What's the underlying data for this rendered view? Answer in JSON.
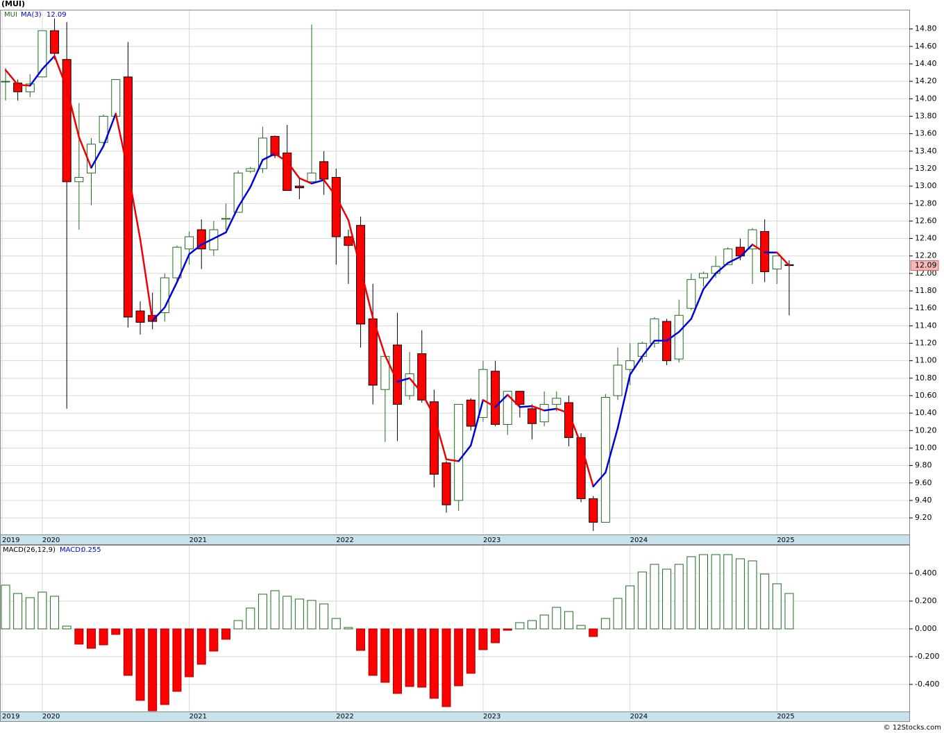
{
  "chart_data": [
    {
      "type": "candlestick",
      "title": "(MUI)",
      "ticker": "MUI",
      "categories": [
        "2019",
        null,
        null,
        "2020",
        null,
        null,
        null,
        null,
        null,
        null,
        null,
        null,
        null,
        null,
        null,
        "2021",
        null,
        null,
        null,
        null,
        null,
        null,
        null,
        null,
        null,
        null,
        null,
        "2022",
        null,
        null,
        null,
        null,
        null,
        null,
        null,
        null,
        null,
        null,
        null,
        "2023",
        null,
        null,
        null,
        null,
        null,
        null,
        null,
        null,
        null,
        null,
        null,
        "2024",
        null,
        null,
        null,
        null,
        null,
        null,
        null,
        null,
        null,
        null,
        null,
        "2025",
        null
      ],
      "open": [
        14.2,
        14.18,
        14.08,
        14.25,
        14.78,
        14.45,
        13.05,
        13.15,
        13.5,
        13.8,
        14.25,
        11.57,
        11.52,
        11.55,
        11.95,
        12.28,
        12.5,
        12.27,
        12.62,
        12.7,
        13.17,
        13.2,
        13.57,
        13.38,
        13.0,
        13.05,
        13.28,
        13.1,
        12.42,
        12.55,
        11.48,
        10.67,
        11.18,
        10.6,
        11.08,
        10.53,
        9.83,
        9.4,
        10.55,
        10.35,
        10.88,
        10.27,
        10.65,
        10.45,
        10.3,
        10.5,
        10.52,
        10.12,
        9.42,
        9.15,
        10.6,
        10.9,
        11.05,
        11.2,
        11.45,
        11.02,
        11.6,
        11.95,
        12.0,
        12.1,
        12.3,
        12.28,
        12.48,
        12.05,
        12.1
      ],
      "high": [
        14.35,
        14.22,
        14.28,
        14.78,
        14.92,
        14.88,
        13.95,
        13.55,
        13.82,
        14.22,
        14.65,
        11.68,
        11.78,
        12.0,
        12.32,
        12.48,
        12.62,
        12.6,
        12.8,
        13.18,
        13.22,
        13.68,
        13.58,
        13.7,
        13.1,
        14.85,
        13.4,
        13.2,
        12.5,
        12.65,
        11.88,
        11.05,
        11.55,
        11.1,
        11.35,
        10.67,
        9.85,
        10.5,
        10.57,
        11.0,
        11.0,
        10.65,
        10.65,
        10.5,
        10.65,
        10.65,
        10.6,
        10.17,
        9.45,
        10.62,
        11.15,
        11.2,
        11.22,
        11.5,
        11.48,
        11.7,
        12.0,
        12.02,
        12.2,
        12.3,
        12.4,
        12.52,
        12.62,
        12.2,
        12.15
      ],
      "low": [
        13.98,
        13.98,
        14.02,
        14.25,
        14.45,
        10.45,
        12.5,
        12.78,
        13.45,
        13.8,
        11.38,
        11.3,
        11.36,
        11.45,
        11.9,
        12.1,
        12.05,
        12.2,
        12.5,
        12.7,
        13.15,
        13.15,
        13.32,
        12.95,
        12.85,
        13.05,
        12.9,
        12.1,
        11.88,
        11.15,
        10.5,
        10.07,
        10.08,
        10.55,
        10.52,
        9.55,
        9.26,
        9.28,
        10.2,
        10.3,
        10.25,
        10.15,
        10.35,
        10.1,
        10.25,
        10.42,
        10.02,
        9.38,
        9.05,
        9.15,
        10.55,
        10.72,
        10.98,
        11.15,
        10.95,
        10.98,
        11.58,
        11.85,
        11.95,
        12.1,
        12.15,
        11.88,
        11.9,
        11.88,
        11.52
      ],
      "close": [
        14.2,
        14.08,
        14.17,
        14.78,
        14.52,
        13.05,
        13.1,
        13.48,
        13.8,
        14.22,
        11.5,
        11.44,
        11.45,
        11.95,
        12.3,
        12.42,
        12.28,
        12.5,
        12.63,
        13.15,
        13.2,
        13.55,
        13.35,
        12.95,
        12.98,
        13.15,
        13.08,
        12.42,
        12.32,
        11.42,
        10.72,
        11.05,
        10.5,
        10.85,
        10.55,
        9.7,
        9.35,
        10.5,
        10.25,
        10.9,
        10.27,
        10.65,
        10.5,
        10.28,
        10.5,
        10.57,
        10.12,
        9.42,
        9.15,
        10.58,
        10.95,
        11.0,
        11.2,
        11.48,
        11.0,
        11.52,
        11.93,
        12.0,
        12.08,
        12.28,
        12.2,
        12.5,
        12.02,
        12.2,
        12.09
      ],
      "ma": {
        "name": "MA(3)",
        "color": "#0000dd",
        "down_color": "#ee0000",
        "values": [
          14.33,
          14.16,
          14.15,
          14.34,
          14.49,
          14.12,
          13.56,
          13.21,
          13.46,
          13.83,
          13.17,
          12.39,
          11.46,
          11.61,
          11.9,
          12.22,
          12.33,
          12.4,
          12.47,
          12.76,
          12.99,
          13.3,
          13.37,
          13.28,
          13.09,
          13.03,
          13.07,
          12.88,
          12.61,
          12.05,
          11.49,
          11.06,
          10.76,
          10.8,
          10.63,
          10.37,
          9.87,
          9.85,
          10.03,
          10.55,
          10.47,
          10.61,
          10.47,
          10.48,
          10.43,
          10.45,
          10.4,
          10.04,
          9.56,
          9.72,
          10.23,
          10.84,
          11.05,
          11.23,
          11.23,
          11.33,
          11.48,
          11.82,
          12.0,
          12.12,
          12.19,
          12.33,
          12.24,
          12.24,
          12.09
        ]
      },
      "up_color": "#1e6b1e",
      "down_color": "#ff0000",
      "ylim": [
        9.01,
        15.02
      ],
      "yticks": [
        {
          "value": 9.2,
          "label": "9.20"
        },
        {
          "value": 9.4,
          "label": "9.40"
        },
        {
          "value": 9.6,
          "label": "9.60"
        },
        {
          "value": 9.8,
          "label": "9.80"
        },
        {
          "value": 10.0,
          "label": "10.00"
        },
        {
          "value": 10.2,
          "label": "10.20"
        },
        {
          "value": 10.4,
          "label": "10.40"
        },
        {
          "value": 10.6,
          "label": "10.60"
        },
        {
          "value": 10.8,
          "label": "10.80"
        },
        {
          "value": 11.0,
          "label": "11.00"
        },
        {
          "value": 11.2,
          "label": "11.20"
        },
        {
          "value": 11.4,
          "label": "11.40"
        },
        {
          "value": 11.6,
          "label": "11.60"
        },
        {
          "value": 11.8,
          "label": "11.80"
        },
        {
          "value": 12.0,
          "label": "12.00"
        },
        {
          "value": 12.2,
          "label": "12.20"
        },
        {
          "value": 12.4,
          "label": "12.40"
        },
        {
          "value": 12.6,
          "label": "12.60"
        },
        {
          "value": 12.8,
          "label": "12.80"
        },
        {
          "value": 13.0,
          "label": "13.00"
        },
        {
          "value": 13.2,
          "label": "13.20"
        },
        {
          "value": 13.4,
          "label": "13.40"
        },
        {
          "value": 13.6,
          "label": "13.60"
        },
        {
          "value": 13.8,
          "label": "13.80"
        },
        {
          "value": 14.0,
          "label": "14.00"
        },
        {
          "value": 14.2,
          "label": "14.20"
        },
        {
          "value": 14.4,
          "label": "14.40"
        },
        {
          "value": 14.6,
          "label": "14.60"
        },
        {
          "value": 14.8,
          "label": "14.80"
        }
      ],
      "grid": true
    },
    {
      "type": "bar",
      "title": "MACD(26,12,9)",
      "value_name": "MACD:",
      "values": [
        0.315,
        0.255,
        0.225,
        0.265,
        0.235,
        0.02,
        -0.11,
        -0.14,
        -0.115,
        -0.04,
        -0.335,
        -0.515,
        -0.59,
        -0.545,
        -0.45,
        -0.345,
        -0.255,
        -0.16,
        -0.075,
        0.06,
        0.15,
        0.25,
        0.275,
        0.235,
        0.215,
        0.205,
        0.18,
        0.075,
        0.01,
        -0.155,
        -0.335,
        -0.385,
        -0.465,
        -0.415,
        -0.42,
        -0.5,
        -0.56,
        -0.41,
        -0.32,
        -0.15,
        -0.1,
        -0.01,
        0.045,
        0.06,
        0.1,
        0.155,
        0.125,
        0.025,
        -0.055,
        0.075,
        0.22,
        0.31,
        0.41,
        0.465,
        0.43,
        0.465,
        0.52,
        0.535,
        0.535,
        0.535,
        0.505,
        0.49,
        0.395,
        0.325,
        0.255
      ],
      "up_color": "#1e6b1e",
      "down_color": "#ff0000",
      "ylim": [
        -0.595,
        0.605
      ],
      "yticks": [
        {
          "value": -0.4,
          "label": "-0.400"
        },
        {
          "value": -0.2,
          "label": "-0.200"
        },
        {
          "value": 0,
          "label": "0.000"
        },
        {
          "value": 0.2,
          "label": "0.200"
        },
        {
          "value": 0.4,
          "label": "0.400"
        }
      ],
      "grid": true
    },
    {
      "footer": "© 12Stocks.com"
    }
  ]
}
